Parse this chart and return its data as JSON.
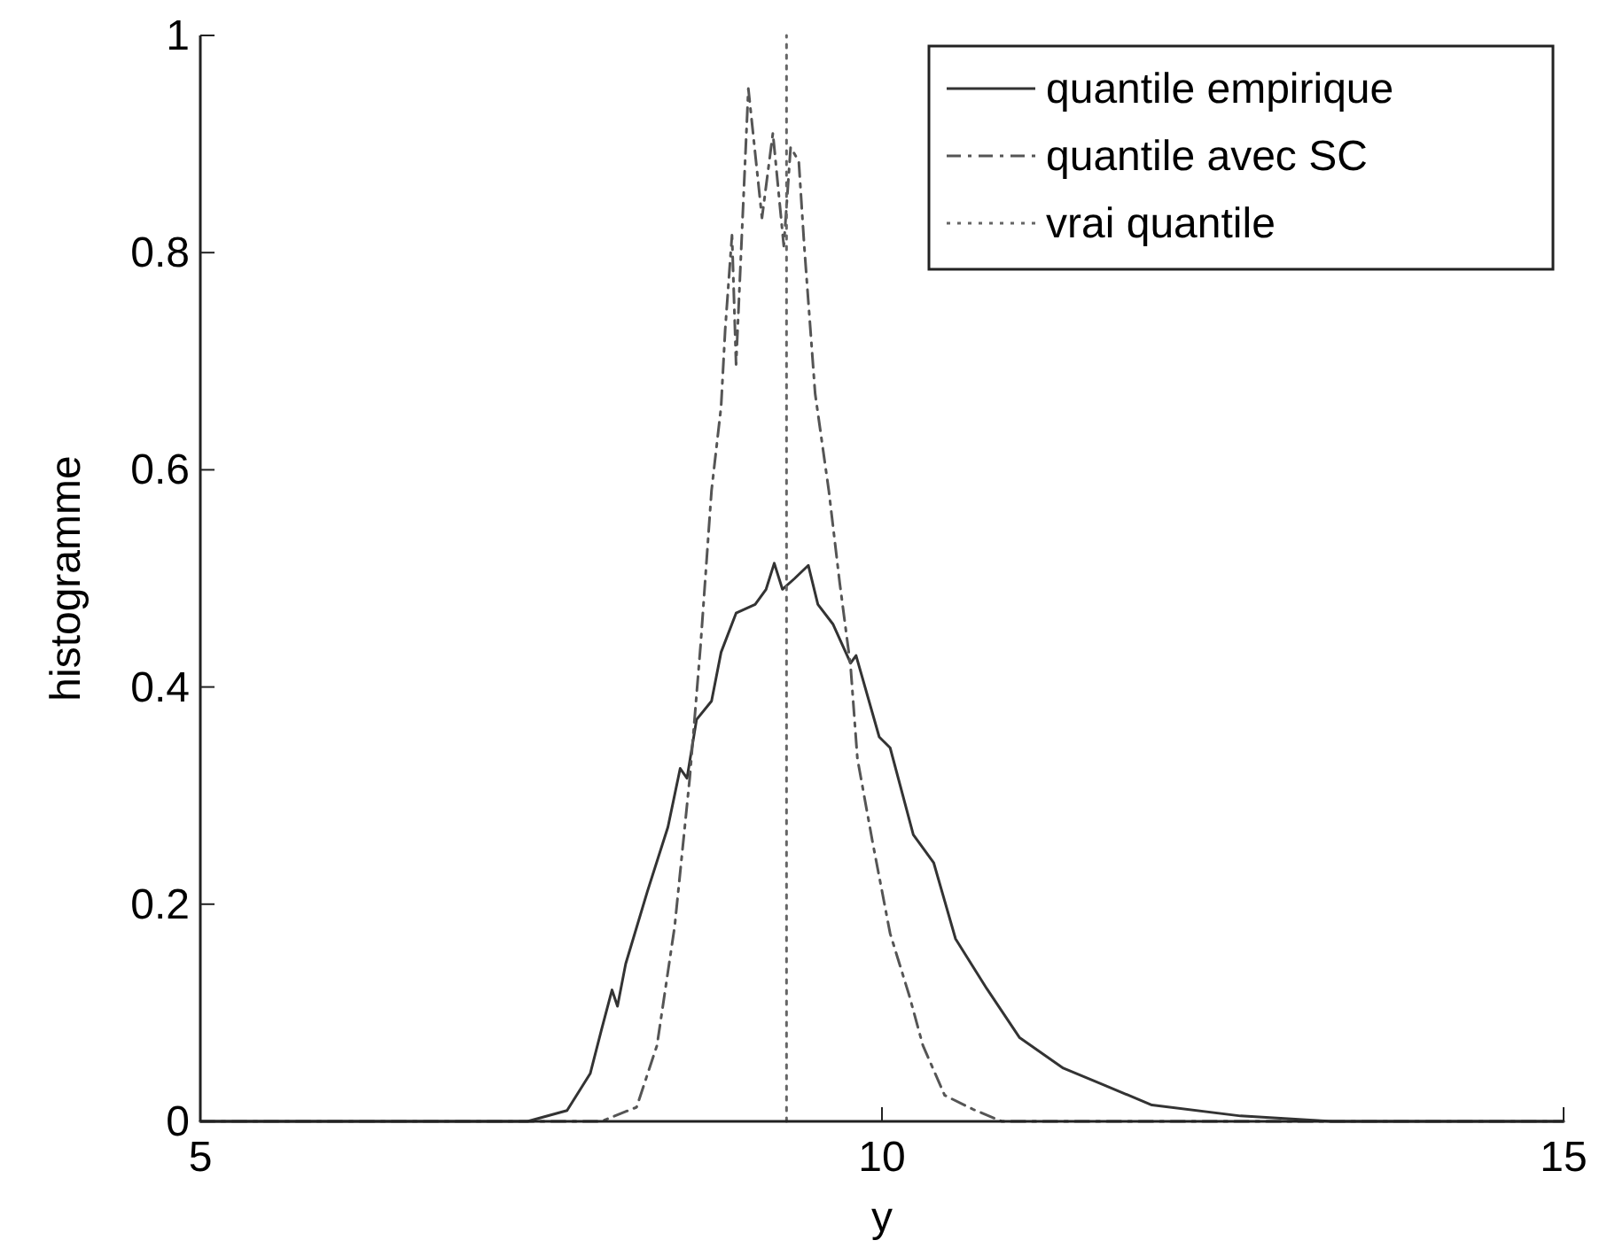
{
  "chart_data": {
    "type": "line",
    "xlabel": "y",
    "ylabel": "histogramme",
    "xlim": [
      5,
      15
    ],
    "xticks": [
      5,
      10,
      15
    ],
    "ylim": [
      0,
      1
    ],
    "yticks": [
      0,
      0.2,
      0.4,
      0.6,
      0.8,
      1
    ],
    "grid": false,
    "legend": "top right",
    "series": [
      {
        "name": "quantile empirique",
        "color": "#333333",
        "line_style": "solid",
        "x": [
          5,
          7.4,
          7.69,
          7.86,
          7.94,
          8.02,
          8.06,
          8.12,
          8.28,
          8.43,
          8.52,
          8.57,
          8.64,
          8.75,
          8.82,
          8.93,
          9.07,
          9.15,
          9.21,
          9.27,
          9.36,
          9.46,
          9.53,
          9.64,
          9.77,
          9.81,
          9.98,
          10.06,
          10.23,
          10.38,
          10.54,
          10.77,
          11.01,
          11.33,
          11.6,
          11.98,
          12.63,
          13.3,
          15
        ],
        "values": [
          0,
          0,
          0.01,
          0.044,
          0.083,
          0.121,
          0.106,
          0.145,
          0.212,
          0.271,
          0.325,
          0.316,
          0.37,
          0.387,
          0.432,
          0.468,
          0.476,
          0.49,
          0.514,
          0.49,
          0.5,
          0.512,
          0.476,
          0.458,
          0.422,
          0.429,
          0.354,
          0.344,
          0.264,
          0.238,
          0.168,
          0.122,
          0.077,
          0.049,
          0.035,
          0.015,
          0.005,
          0,
          0
        ]
      },
      {
        "name": "quantile avec SC",
        "color": "#555555",
        "line_style": "dashdot",
        "x": [
          5,
          7.94,
          8.2,
          8.35,
          8.48,
          8.59,
          8.67,
          8.75,
          8.82,
          8.85,
          8.9,
          8.93,
          9.02,
          9.12,
          9.2,
          9.28,
          9.33,
          9.39,
          9.43,
          9.51,
          9.61,
          9.69,
          9.77,
          9.82,
          9.93,
          10.06,
          10.2,
          10.3,
          10.46,
          10.67,
          10.88,
          15
        ],
        "values": [
          0,
          0,
          0.013,
          0.07,
          0.18,
          0.316,
          0.439,
          0.581,
          0.658,
          0.729,
          0.816,
          0.697,
          0.951,
          0.832,
          0.91,
          0.806,
          0.897,
          0.884,
          0.806,
          0.67,
          0.581,
          0.496,
          0.419,
          0.334,
          0.258,
          0.173,
          0.116,
          0.07,
          0.024,
          0.011,
          0,
          0
        ]
      },
      {
        "name": "vrai quantile",
        "color": "#666666",
        "line_style": "dotted",
        "x": [
          9.3,
          9.3
        ],
        "values": [
          0,
          1
        ]
      }
    ]
  }
}
